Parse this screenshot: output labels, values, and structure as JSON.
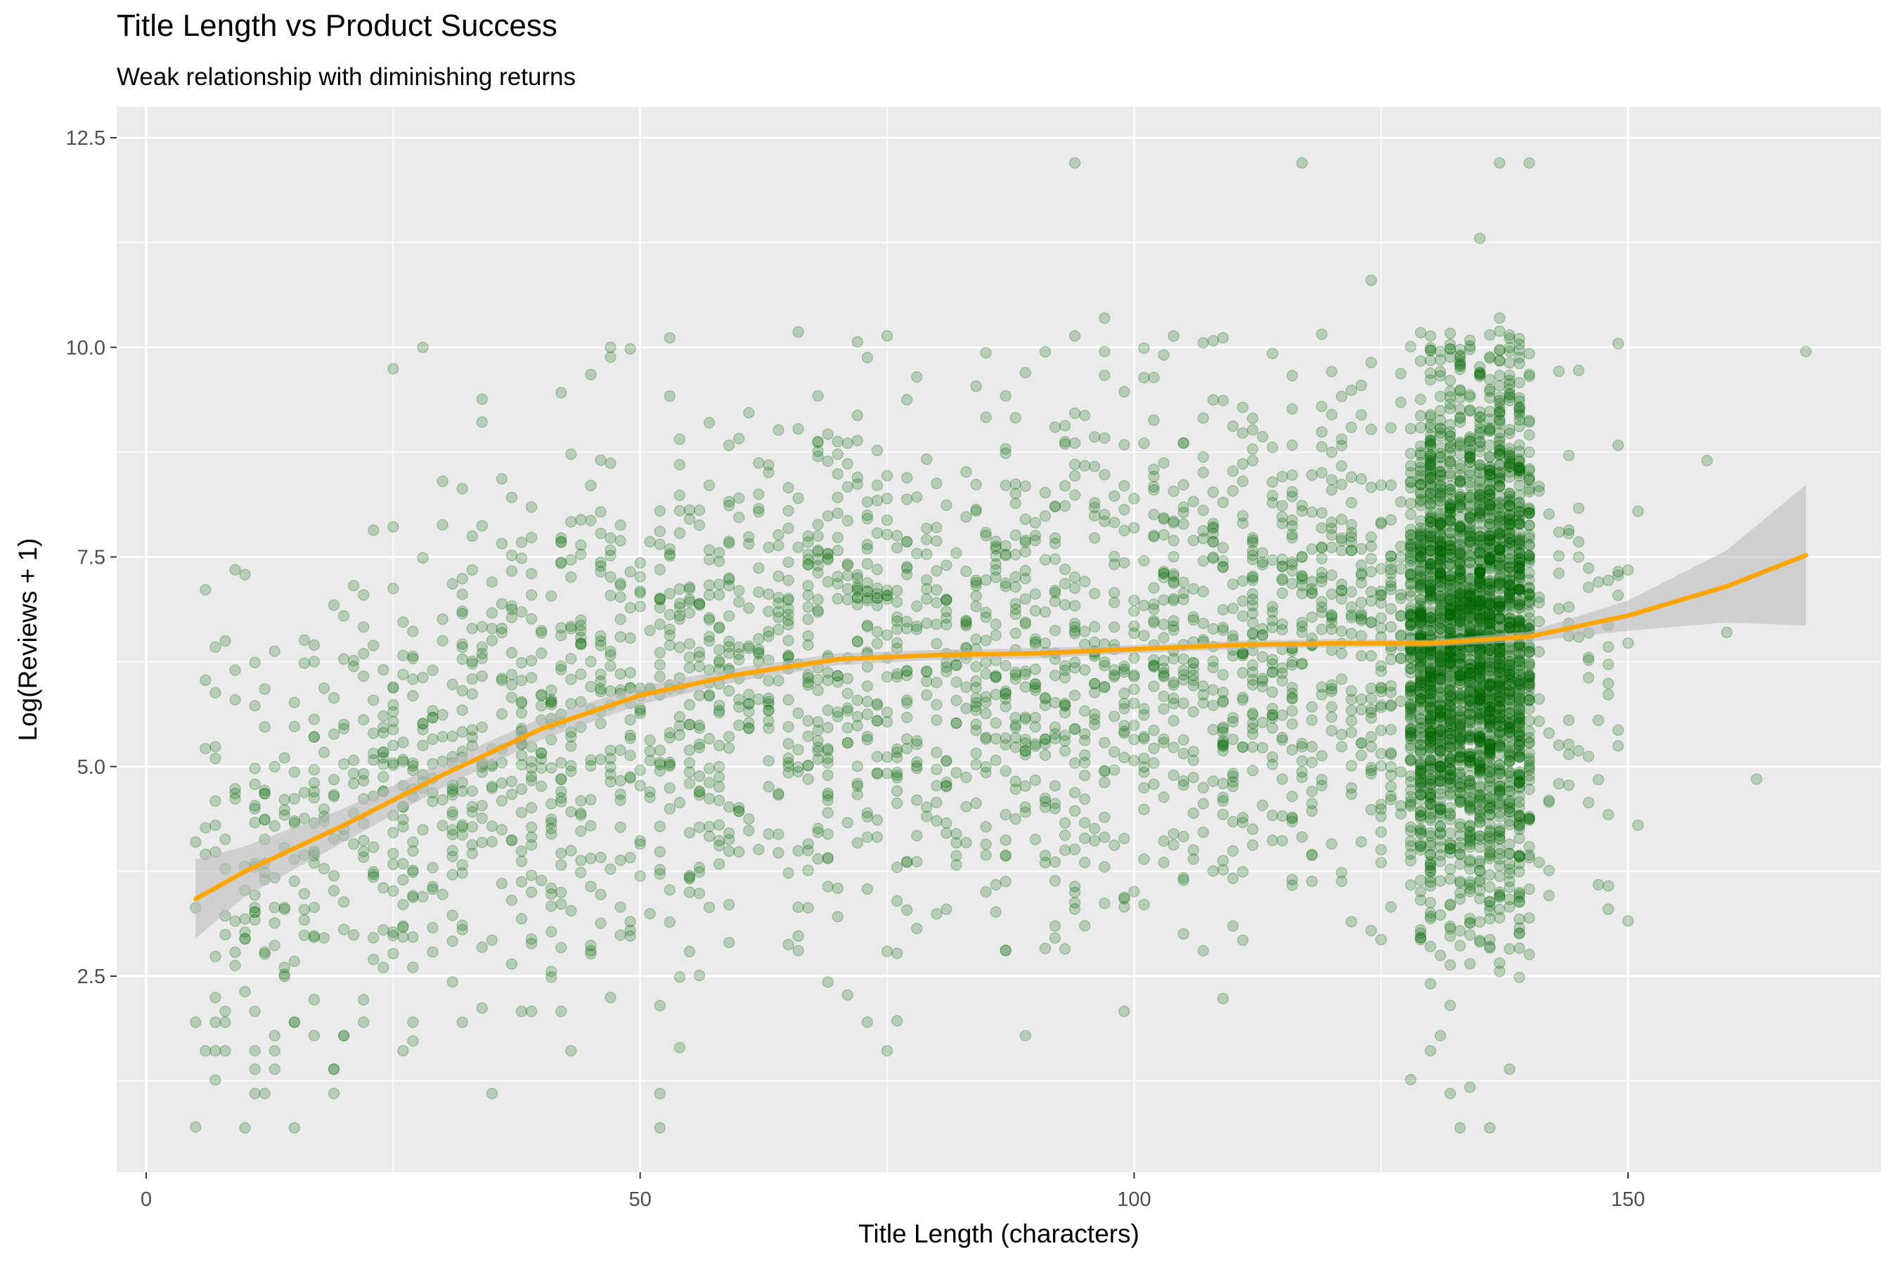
{
  "chart_data": {
    "type": "scatter",
    "title": "Title Length vs Product Success",
    "subtitle": "Weak relationship with diminishing returns",
    "xlabel": "Title Length (characters)",
    "ylabel": "Log(Reviews + 1)",
    "xlim": [
      -3,
      173
    ],
    "ylim": [
      0.18,
      13.05
    ],
    "x_ticks": [
      0,
      50,
      100,
      150
    ],
    "x_tick_labels": [
      "0",
      "50",
      "100",
      "150"
    ],
    "y_ticks": [
      2.5,
      5.0,
      7.5,
      10.0,
      12.5
    ],
    "y_tick_labels": [
      "2.5",
      "5.0",
      "7.5",
      "10.0",
      "12.5"
    ],
    "grid": true,
    "legend": "none",
    "colors": {
      "points": "#006400",
      "smooth_line": "#FFA500",
      "confidence_band": "#bdbdbd",
      "panel_background": "#EBEBEB",
      "gridline": "#FFFFFF"
    },
    "scatter_description": "about 5000 semi-transparent points; x mostly 5 to 140, heaviest density at x 128-140; y spans about 0.7 to 12.2",
    "highlighted_points": [
      [
        94,
        12.2
      ],
      [
        117,
        12.2
      ],
      [
        137,
        12.2
      ],
      [
        140,
        12.2
      ],
      [
        135,
        11.3
      ],
      [
        124,
        10.8
      ],
      [
        97,
        10.35
      ],
      [
        137,
        10.35
      ],
      [
        28,
        10.0
      ],
      [
        47,
        10.0
      ],
      [
        168,
        9.95
      ],
      [
        158,
        8.65
      ],
      [
        5,
        4.1
      ],
      [
        5,
        1.95
      ],
      [
        5,
        0.7
      ],
      [
        160,
        6.6
      ],
      [
        163,
        4.85
      ],
      [
        148,
        3.3
      ]
    ],
    "smooth_curve": {
      "x": [
        5,
        10,
        20,
        30,
        40,
        50,
        60,
        70,
        80,
        90,
        100,
        110,
        120,
        130,
        140,
        150,
        160,
        168
      ],
      "y": [
        3.42,
        3.75,
        4.3,
        4.9,
        5.45,
        5.85,
        6.1,
        6.28,
        6.33,
        6.35,
        6.4,
        6.45,
        6.47,
        6.47,
        6.55,
        6.8,
        7.15,
        7.52
      ],
      "lower": [
        2.95,
        3.45,
        4.1,
        4.75,
        5.32,
        5.74,
        6.02,
        6.21,
        6.27,
        6.29,
        6.35,
        6.4,
        6.42,
        6.43,
        6.49,
        6.62,
        6.72,
        6.68
      ],
      "upper": [
        3.89,
        4.05,
        4.5,
        5.05,
        5.58,
        5.96,
        6.18,
        6.35,
        6.39,
        6.41,
        6.45,
        6.5,
        6.52,
        6.51,
        6.61,
        6.98,
        7.58,
        8.36
      ]
    }
  }
}
